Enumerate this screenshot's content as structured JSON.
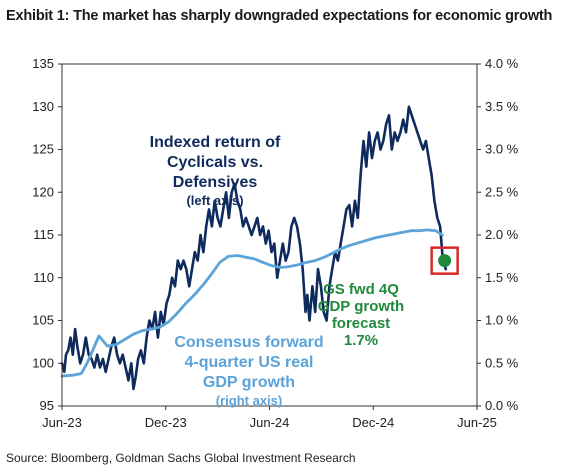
{
  "title": "Exhibit 1: The market has sharply downgraded expectations for economic growth",
  "source": "Source: Bloomberg, Goldman Sachs Global Investment Research",
  "colors": {
    "cyclicals": "#0f2a5c",
    "consensus": "#5ba3d9",
    "forecast_label": "#1f8a3c",
    "forecast_marker": "#1f8a3c",
    "highlight_box": "#d62828",
    "axis": "#333333",
    "grid": "#d9d9d9"
  },
  "chart_data": {
    "type": "line",
    "x_ticks": [
      "Jun-23",
      "Dec-23",
      "Jun-24",
      "Dec-24",
      "Jun-25"
    ],
    "x_range": [
      "2023-06-01",
      "2025-06-01"
    ],
    "y_left": {
      "ticks": [
        "95",
        "100",
        "105",
        "110",
        "115",
        "120",
        "125",
        "130",
        "135"
      ],
      "lim": [
        95,
        135
      ]
    },
    "y_right": {
      "ticks": [
        "0.0 %",
        "0.5 %",
        "1.0 %",
        "1.5 %",
        "2.0 %",
        "2.5 %",
        "3.0 %",
        "3.5 %",
        "4.0 %"
      ],
      "lim": [
        0,
        4
      ]
    },
    "series": [
      {
        "key": "cyclicals",
        "axis": "left",
        "label_lines": [
          "Indexed return of",
          "Cyclicals vs.",
          "Defensives"
        ],
        "label_sub": "(left axis)",
        "points": [
          [
            "2023-06-01",
            100
          ],
          [
            "2023-06-05",
            99
          ],
          [
            "2023-06-08",
            101
          ],
          [
            "2023-06-12",
            101.5
          ],
          [
            "2023-06-16",
            103
          ],
          [
            "2023-06-20",
            101
          ],
          [
            "2023-06-24",
            104
          ],
          [
            "2023-06-28",
            102
          ],
          [
            "2023-07-03",
            100
          ],
          [
            "2023-07-08",
            101
          ],
          [
            "2023-07-13",
            103
          ],
          [
            "2023-07-18",
            101
          ],
          [
            "2023-07-23",
            100.5
          ],
          [
            "2023-07-28",
            99.5
          ],
          [
            "2023-08-02",
            101
          ],
          [
            "2023-08-07",
            99.5
          ],
          [
            "2023-08-12",
            100.5
          ],
          [
            "2023-08-17",
            99
          ],
          [
            "2023-08-22",
            100.5
          ],
          [
            "2023-08-27",
            102
          ],
          [
            "2023-09-01",
            103
          ],
          [
            "2023-09-06",
            101
          ],
          [
            "2023-09-11",
            100
          ],
          [
            "2023-09-16",
            101
          ],
          [
            "2023-09-21",
            99.5
          ],
          [
            "2023-09-26",
            98
          ],
          [
            "2023-10-01",
            100
          ],
          [
            "2023-10-05",
            97
          ],
          [
            "2023-10-09",
            98.5
          ],
          [
            "2023-10-13",
            100.5
          ],
          [
            "2023-10-18",
            101.5
          ],
          [
            "2023-10-23",
            100
          ],
          [
            "2023-10-28",
            103
          ],
          [
            "2023-11-02",
            105
          ],
          [
            "2023-11-07",
            104
          ],
          [
            "2023-11-12",
            106
          ],
          [
            "2023-11-17",
            103
          ],
          [
            "2023-11-22",
            106
          ],
          [
            "2023-11-27",
            104.5
          ],
          [
            "2023-12-02",
            107
          ],
          [
            "2023-12-07",
            108
          ],
          [
            "2023-12-12",
            110
          ],
          [
            "2023-12-17",
            109
          ],
          [
            "2023-12-22",
            112
          ],
          [
            "2023-12-27",
            111
          ],
          [
            "2024-01-01",
            112
          ],
          [
            "2024-01-06",
            111
          ],
          [
            "2024-01-11",
            109
          ],
          [
            "2024-01-16",
            111
          ],
          [
            "2024-01-21",
            113
          ],
          [
            "2024-01-26",
            112
          ],
          [
            "2024-01-31",
            115
          ],
          [
            "2024-02-05",
            113
          ],
          [
            "2024-02-10",
            116
          ],
          [
            "2024-02-15",
            118
          ],
          [
            "2024-02-20",
            116
          ],
          [
            "2024-02-25",
            119
          ],
          [
            "2024-03-01",
            117
          ],
          [
            "2024-03-06",
            116
          ],
          [
            "2024-03-11",
            118
          ],
          [
            "2024-03-16",
            120
          ],
          [
            "2024-03-21",
            117
          ],
          [
            "2024-03-26",
            120
          ],
          [
            "2024-03-31",
            121
          ],
          [
            "2024-04-05",
            119
          ],
          [
            "2024-04-10",
            118
          ],
          [
            "2024-04-15",
            116
          ],
          [
            "2024-04-20",
            117
          ],
          [
            "2024-04-25",
            116
          ],
          [
            "2024-04-30",
            115
          ],
          [
            "2024-05-05",
            116
          ],
          [
            "2024-05-10",
            117
          ],
          [
            "2024-05-15",
            115
          ],
          [
            "2024-05-20",
            116
          ],
          [
            "2024-05-25",
            114
          ],
          [
            "2024-05-30",
            115.5
          ],
          [
            "2024-06-04",
            113
          ],
          [
            "2024-06-09",
            114
          ],
          [
            "2024-06-14",
            110
          ],
          [
            "2024-06-19",
            112
          ],
          [
            "2024-06-24",
            114
          ],
          [
            "2024-06-29",
            112
          ],
          [
            "2024-07-04",
            113
          ],
          [
            "2024-07-09",
            116
          ],
          [
            "2024-07-14",
            117
          ],
          [
            "2024-07-19",
            116
          ],
          [
            "2024-07-24",
            114
          ],
          [
            "2024-07-29",
            111
          ],
          [
            "2024-08-03",
            106
          ],
          [
            "2024-08-06",
            108
          ],
          [
            "2024-08-10",
            105
          ],
          [
            "2024-08-15",
            109
          ],
          [
            "2024-08-20",
            106
          ],
          [
            "2024-08-25",
            111
          ],
          [
            "2024-08-30",
            109
          ],
          [
            "2024-09-04",
            106
          ],
          [
            "2024-09-09",
            105
          ],
          [
            "2024-09-14",
            109
          ],
          [
            "2024-09-19",
            111
          ],
          [
            "2024-09-24",
            113
          ],
          [
            "2024-09-29",
            112
          ],
          [
            "2024-10-04",
            114
          ],
          [
            "2024-10-09",
            116
          ],
          [
            "2024-10-14",
            118
          ],
          [
            "2024-10-19",
            118.5
          ],
          [
            "2024-10-24",
            116
          ],
          [
            "2024-10-29",
            119
          ],
          [
            "2024-11-03",
            117
          ],
          [
            "2024-11-08",
            122
          ],
          [
            "2024-11-13",
            126
          ],
          [
            "2024-11-18",
            123
          ],
          [
            "2024-11-23",
            127
          ],
          [
            "2024-11-28",
            124
          ],
          [
            "2024-12-03",
            126
          ],
          [
            "2024-12-08",
            127
          ],
          [
            "2024-12-13",
            125
          ],
          [
            "2024-12-18",
            126
          ],
          [
            "2024-12-23",
            128
          ],
          [
            "2024-12-28",
            129
          ],
          [
            "2025-01-02",
            125
          ],
          [
            "2025-01-07",
            127
          ],
          [
            "2025-01-12",
            126
          ],
          [
            "2025-01-17",
            127
          ],
          [
            "2025-01-22",
            128.5
          ],
          [
            "2025-01-27",
            127
          ],
          [
            "2025-02-01",
            130
          ],
          [
            "2025-02-06",
            129
          ],
          [
            "2025-02-11",
            128
          ],
          [
            "2025-02-16",
            127
          ],
          [
            "2025-02-21",
            126
          ],
          [
            "2025-02-26",
            125
          ],
          [
            "2025-03-03",
            126
          ],
          [
            "2025-03-08",
            124
          ],
          [
            "2025-03-13",
            122
          ],
          [
            "2025-03-18",
            119
          ],
          [
            "2025-03-23",
            117
          ],
          [
            "2025-03-28",
            116
          ],
          [
            "2025-04-02",
            112
          ],
          [
            "2025-04-07",
            111
          ]
        ]
      },
      {
        "key": "consensus",
        "axis": "right",
        "label_lines": [
          "Consensus forward",
          "4-quarter US real",
          "GDP growth"
        ],
        "label_sub": "(right axis)",
        "points": [
          [
            "2023-06-01",
            0.35
          ],
          [
            "2023-06-20",
            0.36
          ],
          [
            "2023-07-05",
            0.38
          ],
          [
            "2023-07-15",
            0.5
          ],
          [
            "2023-07-25",
            0.65
          ],
          [
            "2023-08-05",
            0.82
          ],
          [
            "2023-08-20",
            0.7
          ],
          [
            "2023-09-05",
            0.72
          ],
          [
            "2023-09-20",
            0.78
          ],
          [
            "2023-10-05",
            0.84
          ],
          [
            "2023-10-20",
            0.88
          ],
          [
            "2023-11-05",
            0.9
          ],
          [
            "2023-11-20",
            0.92
          ],
          [
            "2023-12-05",
            0.98
          ],
          [
            "2023-12-20",
            1.08
          ],
          [
            "2024-01-05",
            1.2
          ],
          [
            "2024-01-20",
            1.3
          ],
          [
            "2024-02-05",
            1.42
          ],
          [
            "2024-02-20",
            1.55
          ],
          [
            "2024-03-05",
            1.68
          ],
          [
            "2024-03-20",
            1.75
          ],
          [
            "2024-04-05",
            1.76
          ],
          [
            "2024-04-20",
            1.74
          ],
          [
            "2024-05-05",
            1.72
          ],
          [
            "2024-05-20",
            1.68
          ],
          [
            "2024-06-05",
            1.64
          ],
          [
            "2024-06-20",
            1.62
          ],
          [
            "2024-07-05",
            1.63
          ],
          [
            "2024-07-20",
            1.65
          ],
          [
            "2024-08-05",
            1.68
          ],
          [
            "2024-08-20",
            1.7
          ],
          [
            "2024-09-05",
            1.74
          ],
          [
            "2024-09-20",
            1.79
          ],
          [
            "2024-10-05",
            1.84
          ],
          [
            "2024-10-20",
            1.88
          ],
          [
            "2024-11-05",
            1.91
          ],
          [
            "2024-11-20",
            1.94
          ],
          [
            "2024-12-05",
            1.97
          ],
          [
            "2024-12-20",
            1.99
          ],
          [
            "2025-01-05",
            2.01
          ],
          [
            "2025-01-20",
            2.03
          ],
          [
            "2025-02-05",
            2.05
          ],
          [
            "2025-02-20",
            2.05
          ],
          [
            "2025-03-05",
            2.06
          ],
          [
            "2025-03-20",
            2.05
          ],
          [
            "2025-04-01",
            2.0
          ]
        ]
      }
    ],
    "forecast": {
      "label_lines": [
        "GS fwd 4Q",
        "GDP growth",
        "forecast",
        "1.7%"
      ],
      "date": "2025-04-05",
      "value": 1.7,
      "axis": "right"
    }
  }
}
